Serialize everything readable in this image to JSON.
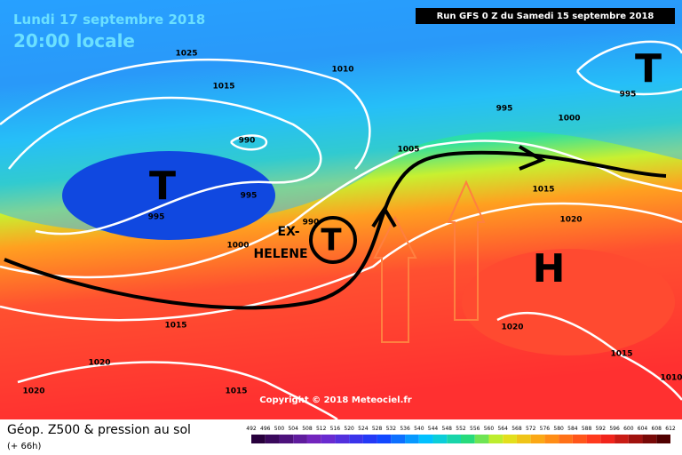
{
  "header": {
    "date": "Lundi 17 septembre 2018",
    "time": "20:00 locale",
    "run": "Run GFS 0 Z du Samedi 15 septembre 2018"
  },
  "map": {
    "pressure_labels": [
      1025,
      1010,
      1015,
      990,
      995,
      995,
      990,
      1000,
      1005,
      995,
      1000,
      1015,
      1020,
      995,
      1015,
      1020,
      1020,
      1015,
      1020,
      1015,
      1010
    ],
    "systems": [
      "T",
      "T",
      "T",
      "H"
    ],
    "storm_label": [
      "EX-",
      "HELENE"
    ],
    "copyright": "Copyright © 2018 Meteociel.fr"
  },
  "legend": {
    "title": "Géop. Z500 & pression au sol",
    "lead": "(+ 66h)",
    "scale": [
      492,
      496,
      500,
      504,
      508,
      512,
      516,
      520,
      524,
      528,
      532,
      536,
      540,
      544,
      548,
      552,
      556,
      560,
      564,
      568,
      572,
      576,
      580,
      584,
      588,
      592,
      596,
      600,
      604,
      608,
      612
    ]
  }
}
